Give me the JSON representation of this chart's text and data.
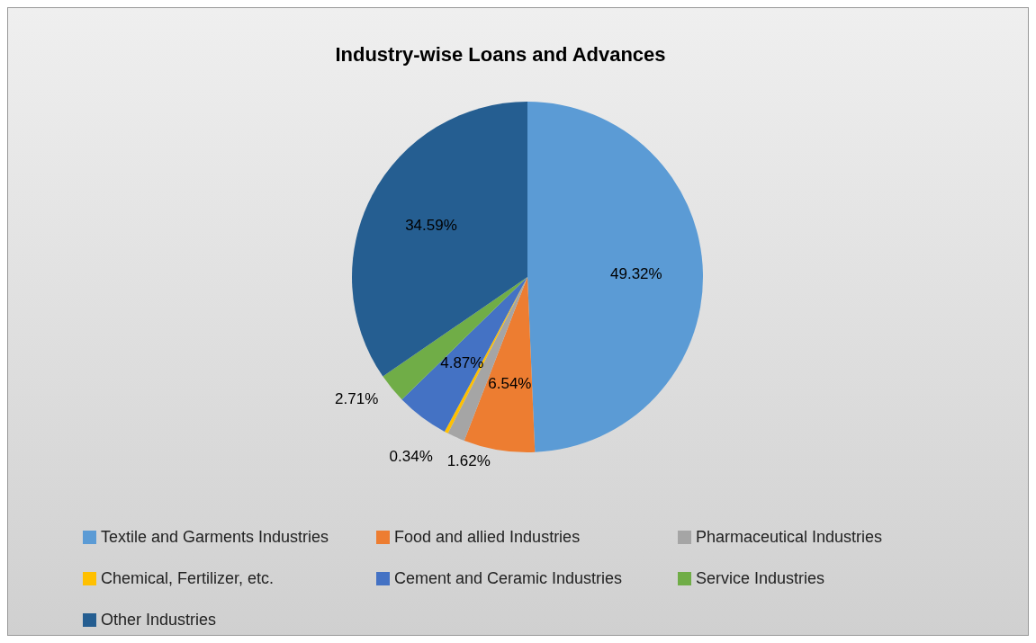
{
  "chart_data": {
    "type": "pie",
    "title": "Industry-wise Loans and Advances",
    "categories": [
      "Textile and Garments Industries",
      "Food and allied Industries",
      "Pharmaceutical Industries",
      "Chemical, Fertilizer, etc.",
      "Cement and Ceramic Industries",
      "Service Industries",
      "Other Industries"
    ],
    "values": [
      49.32,
      6.54,
      1.62,
      0.34,
      4.87,
      2.71,
      34.59
    ],
    "colors": [
      "#5b9bd5",
      "#ed7d31",
      "#a5a5a5",
      "#ffc000",
      "#4472c4",
      "#70ad47",
      "#255e91"
    ],
    "value_labels": [
      "49.32%",
      "6.54%",
      "1.62%",
      "0.34%",
      "4.87%",
      "2.71%",
      "34.59%"
    ],
    "legend": "bottom"
  }
}
